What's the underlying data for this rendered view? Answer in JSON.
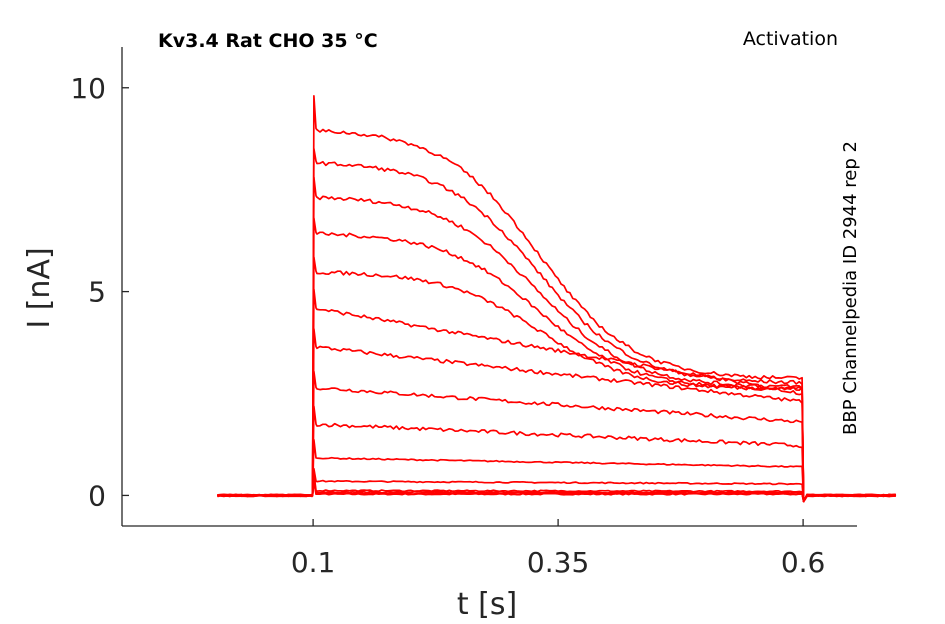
{
  "chart_data": {
    "type": "line",
    "title": "Kv3.4  Rat  CHO  35 °C",
    "annotation_right": "Activation",
    "side_label": "BBP Channelpedia ID 2944 rep 2",
    "xlabel": "t [s]",
    "ylabel": "I [nA]",
    "xlim": [
      -0.095,
      0.655
    ],
    "ylim": [
      -0.75,
      11.0
    ],
    "x_ticks": [
      0.1,
      0.35,
      0.6
    ],
    "x_tick_labels": [
      "0.1",
      "0.35",
      "0.6"
    ],
    "y_ticks": [
      0,
      5,
      10
    ],
    "y_tick_labels": [
      "0",
      "5",
      "10"
    ],
    "grid": false,
    "legend": "none",
    "line_color": "#ff0000",
    "pulse_window": [
      0.1,
      0.6
    ],
    "x_start": 0.003,
    "x_end": 0.7,
    "peak_transient": 9.8,
    "series": [
      {
        "start": 0.03,
        "end": 0.03,
        "kind": "linear"
      },
      {
        "start": 0.05,
        "end": 0.05,
        "kind": "linear"
      },
      {
        "start": 0.08,
        "end": 0.07,
        "kind": "linear"
      },
      {
        "start": 0.12,
        "end": 0.1,
        "kind": "linear"
      },
      {
        "start": 0.35,
        "end": 0.28,
        "kind": "linear"
      },
      {
        "start": 0.92,
        "end": 0.7,
        "kind": "linear"
      },
      {
        "start": 1.75,
        "end": 1.22,
        "kind": "linear"
      },
      {
        "start": 2.65,
        "end": 1.8,
        "kind": "linear"
      },
      {
        "start": 3.65,
        "end": 2.3,
        "kind": "linear"
      },
      {
        "start": 4.6,
        "end": 2.5,
        "kind": "linear"
      },
      {
        "start": 5.5,
        "end": 2.6,
        "kind": "sigmoid"
      },
      {
        "start": 6.45,
        "end": 2.6,
        "kind": "sigmoid"
      },
      {
        "start": 7.35,
        "end": 2.65,
        "kind": "sigmoid"
      },
      {
        "start": 8.2,
        "end": 2.75,
        "kind": "sigmoid"
      },
      {
        "start": 9.0,
        "end": 2.85,
        "kind": "sigmoid"
      }
    ]
  }
}
